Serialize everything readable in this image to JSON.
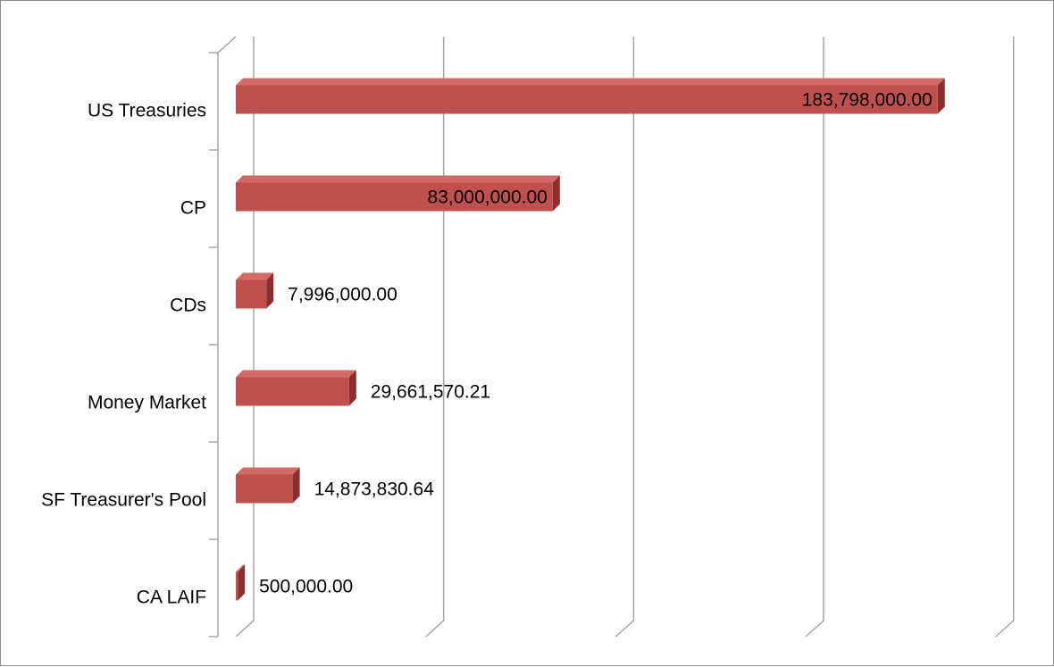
{
  "chart_data": {
    "type": "bar",
    "orientation": "horizontal",
    "style": "3d",
    "categories": [
      "US Treasuries",
      "CP",
      "CDs",
      "Money Market",
      "SF Treasurer's Pool",
      "CA LAIF"
    ],
    "values": [
      183798000.0,
      83000000.0,
      7996000.0,
      29661570.21,
      14873830.64,
      500000.0
    ],
    "value_labels": [
      "183,798,000.00",
      "83,000,000.00",
      "7,996,000.00",
      "29,661,570.21",
      "14,873,830.64",
      "500,000.00"
    ],
    "xlim": [
      0,
      200000000
    ],
    "gridlines": true,
    "legend": "none",
    "title": "",
    "xlabel": "",
    "ylabel": ""
  },
  "colors": {
    "bar_front": "#c0504d",
    "bar_top": "#d46a67",
    "bar_side": "#8c2f2c",
    "grid": "#a6a6a6"
  }
}
